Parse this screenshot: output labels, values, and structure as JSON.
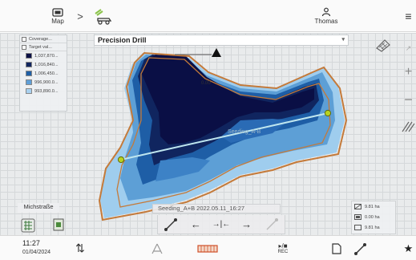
{
  "topbar": {
    "map_label": "Map",
    "user_label": "Thomas",
    "icons": {
      "map": "map-icon",
      "chevron": "chevron-right-icon",
      "implement": "seed-drill-icon",
      "user": "user-icon",
      "menu": "menu-icon"
    },
    "chevron_glyph": ">",
    "menu_glyph": "≡"
  },
  "implement_select": {
    "value": "Precision Drill",
    "caret": "▾"
  },
  "legend": {
    "header_coverage": "Coverage...",
    "header_target": "Target val...",
    "items": [
      {
        "label": "1,037,870...",
        "color": "#0b1046"
      },
      {
        "label": "1,016,840...",
        "color": "#11265f"
      },
      {
        "label": "1,006,450...",
        "color": "#1f5fa6"
      },
      {
        "label": "996,900.0...",
        "color": "#5e9fd8"
      },
      {
        "label": "993,890.0...",
        "color": "#a9d1f0"
      }
    ]
  },
  "map": {
    "speed_value": "0.00",
    "guidance_label": "Seeding_A-B",
    "field_name": "Michstraße",
    "colors": {
      "boundary": "#c47a3a",
      "guidance_line": "#bfe6ef",
      "point_a": "#b8d220"
    }
  },
  "right_controls": {
    "zoom_in_glyph": "+",
    "zoom_out_glyph": "−",
    "ab_glyph": "↗",
    "icons": {
      "layers": "grid-layers-icon",
      "swath": "swath-icon"
    }
  },
  "guidance": {
    "line_name": "Seeding_A+B 2022.05.11_16:27",
    "controls": [
      {
        "name": "ab-edit",
        "glyph": ""
      },
      {
        "name": "shift-left",
        "glyph": "←"
      },
      {
        "name": "center",
        "glyph": "→|←"
      },
      {
        "name": "shift-right",
        "glyph": "→"
      },
      {
        "name": "ab-disabled",
        "glyph": ""
      }
    ]
  },
  "stats": {
    "worked_area": "9.81 ha",
    "remaining_area": "0.00 ha",
    "total_area": "9.81 ha"
  },
  "bottombar": {
    "time": "11:27",
    "date": "01/04/2024",
    "sync_glyph": "⇅",
    "rec_label": "REC",
    "rec_top": "▸/■",
    "fav_glyph": "★"
  }
}
